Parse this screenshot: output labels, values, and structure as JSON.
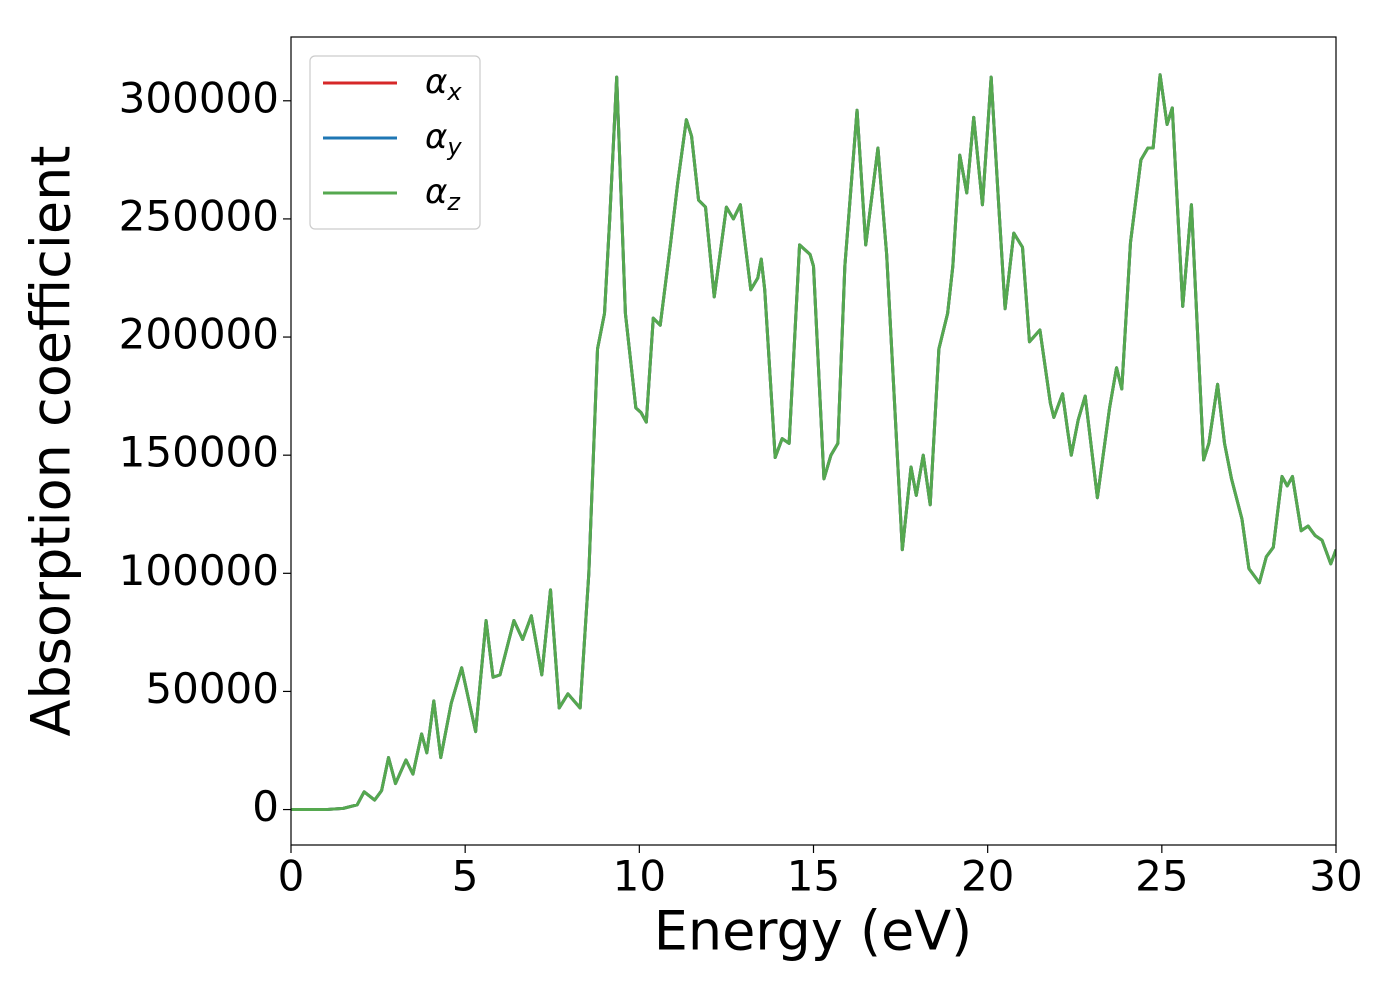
{
  "chart_data": {
    "type": "line",
    "xlabel": "Energy (eV)",
    "ylabel": "Absorption coefficient",
    "xlim": [
      0,
      30
    ],
    "ylim": [
      -15000,
      327000
    ],
    "xticks": [
      0,
      5,
      10,
      15,
      20,
      25,
      30
    ],
    "yticks": [
      0,
      50000,
      100000,
      150000,
      200000,
      250000,
      300000
    ],
    "legend": "upper left",
    "x": [
      0,
      1,
      1.5,
      1.9,
      2.1,
      2.4,
      2.6,
      2.8,
      3.0,
      3.3,
      3.5,
      3.75,
      3.9,
      4.1,
      4.3,
      4.6,
      4.9,
      5.3,
      5.6,
      5.8,
      6.0,
      6.4,
      6.65,
      6.9,
      7.2,
      7.45,
      7.7,
      7.95,
      8.3,
      8.55,
      8.8,
      9.0,
      9.15,
      9.35,
      9.6,
      9.9,
      10.05,
      10.2,
      10.4,
      10.6,
      10.9,
      11.1,
      11.35,
      11.5,
      11.7,
      11.9,
      12.15,
      12.5,
      12.7,
      12.9,
      13.2,
      13.4,
      13.5,
      13.6,
      13.9,
      14.1,
      14.3,
      14.6,
      14.9,
      15.0,
      15.3,
      15.5,
      15.7,
      15.9,
      16.25,
      16.5,
      16.85,
      17.1,
      17.55,
      17.8,
      17.95,
      18.15,
      18.35,
      18.6,
      18.85,
      19.0,
      19.2,
      19.4,
      19.6,
      19.85,
      20.1,
      20.3,
      20.5,
      20.75,
      21.0,
      21.2,
      21.5,
      21.8,
      21.9,
      22.15,
      22.3,
      22.4,
      22.6,
      22.8,
      23.15,
      23.5,
      23.7,
      23.85,
      24.1,
      24.4,
      24.6,
      24.75,
      24.95,
      25.15,
      25.3,
      25.6,
      25.85,
      26.2,
      26.35,
      26.6,
      26.8,
      27.0,
      27.3,
      27.5,
      27.8,
      28.0,
      28.2,
      28.45,
      28.6,
      28.75,
      29.0,
      29.2,
      29.4,
      29.6,
      29.85,
      30
    ],
    "series": [
      {
        "name": "αx",
        "color": "#d62728",
        "values": [
          0,
          0,
          500,
          2000,
          7500,
          4000,
          8000,
          22000,
          11000,
          21000,
          15000,
          32000,
          24000,
          46000,
          22000,
          45000,
          60000,
          33000,
          80000,
          56000,
          57000,
          80000,
          72000,
          82000,
          57000,
          93000,
          43000,
          49000,
          43000,
          100000,
          195000,
          210000,
          250000,
          310000,
          210000,
          170000,
          168000,
          164000,
          208000,
          205000,
          240000,
          265000,
          292000,
          285000,
          258000,
          255000,
          217000,
          255000,
          250000,
          256000,
          220000,
          225000,
          233000,
          220000,
          149000,
          157000,
          155000,
          239000,
          235000,
          230000,
          140000,
          150000,
          155000,
          230000,
          296000,
          239000,
          280000,
          235000,
          110000,
          145000,
          133000,
          150000,
          129000,
          195000,
          210000,
          230000,
          277000,
          261000,
          293000,
          256000,
          310000,
          260000,
          212000,
          244000,
          238000,
          198000,
          203000,
          172000,
          166000,
          176000,
          160000,
          150000,
          165000,
          175000,
          132000,
          170000,
          187000,
          178000,
          240000,
          275000,
          280000,
          280000,
          311000,
          290000,
          297000,
          213000,
          256000,
          148000,
          155000,
          180000,
          155000,
          140000,
          123000,
          102000,
          96000,
          107000,
          111000,
          141000,
          137000,
          141000,
          118000,
          120000,
          116000,
          114000,
          104000,
          110000
        ]
      },
      {
        "name": "αy",
        "color": "#1f77b4",
        "values": [
          0,
          0,
          500,
          2000,
          7500,
          4000,
          8000,
          22000,
          11000,
          21000,
          15000,
          32000,
          24000,
          46000,
          22000,
          45000,
          60000,
          33000,
          80000,
          56000,
          57000,
          80000,
          72000,
          82000,
          57000,
          93000,
          43000,
          49000,
          43000,
          100000,
          195000,
          210000,
          250000,
          310000,
          210000,
          170000,
          168000,
          164000,
          208000,
          205000,
          240000,
          265000,
          292000,
          285000,
          258000,
          255000,
          217000,
          255000,
          250000,
          256000,
          220000,
          225000,
          233000,
          220000,
          149000,
          157000,
          155000,
          239000,
          235000,
          230000,
          140000,
          150000,
          155000,
          230000,
          296000,
          239000,
          280000,
          235000,
          110000,
          145000,
          133000,
          150000,
          129000,
          195000,
          210000,
          230000,
          277000,
          261000,
          293000,
          256000,
          310000,
          260000,
          212000,
          244000,
          238000,
          198000,
          203000,
          172000,
          166000,
          176000,
          160000,
          150000,
          165000,
          175000,
          132000,
          170000,
          187000,
          178000,
          240000,
          275000,
          280000,
          280000,
          311000,
          290000,
          297000,
          213000,
          256000,
          148000,
          155000,
          180000,
          155000,
          140000,
          123000,
          102000,
          96000,
          107000,
          111000,
          141000,
          137000,
          141000,
          118000,
          120000,
          116000,
          114000,
          104000,
          110000
        ]
      },
      {
        "name": "αz",
        "color": "#55a84f",
        "values": [
          0,
          0,
          500,
          2000,
          7500,
          4000,
          8000,
          22000,
          11000,
          21000,
          15000,
          32000,
          24000,
          46000,
          22000,
          45000,
          60000,
          33000,
          80000,
          56000,
          57000,
          80000,
          72000,
          82000,
          57000,
          93000,
          43000,
          49000,
          43000,
          100000,
          195000,
          210000,
          250000,
          310000,
          210000,
          170000,
          168000,
          164000,
          208000,
          205000,
          240000,
          265000,
          292000,
          285000,
          258000,
          255000,
          217000,
          255000,
          250000,
          256000,
          220000,
          225000,
          233000,
          220000,
          149000,
          157000,
          155000,
          239000,
          235000,
          230000,
          140000,
          150000,
          155000,
          230000,
          296000,
          239000,
          280000,
          235000,
          110000,
          145000,
          133000,
          150000,
          129000,
          195000,
          210000,
          230000,
          277000,
          261000,
          293000,
          256000,
          310000,
          260000,
          212000,
          244000,
          238000,
          198000,
          203000,
          172000,
          166000,
          176000,
          160000,
          150000,
          165000,
          175000,
          132000,
          170000,
          187000,
          178000,
          240000,
          275000,
          280000,
          280000,
          311000,
          290000,
          297000,
          213000,
          256000,
          148000,
          155000,
          180000,
          155000,
          140000,
          123000,
          102000,
          96000,
          107000,
          111000,
          141000,
          137000,
          141000,
          118000,
          120000,
          116000,
          114000,
          104000,
          110000
        ]
      }
    ]
  }
}
